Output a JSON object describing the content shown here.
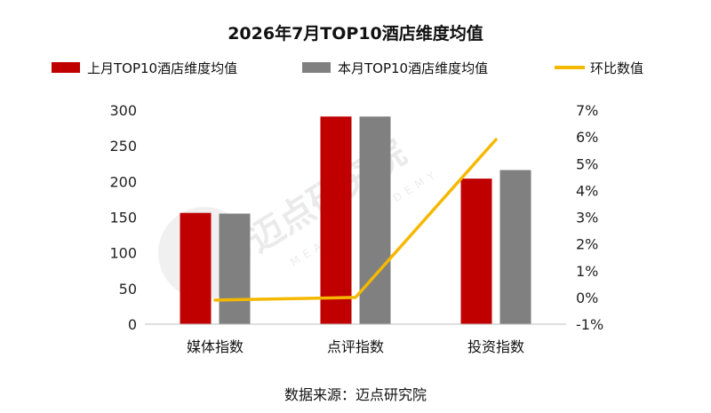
{
  "chart_data": {
    "type": "bar",
    "title": "2026年7月TOP10酒店维度均值",
    "categories": [
      "媒体指数",
      "点评指数",
      "投资指数"
    ],
    "series": [
      {
        "name": "上月TOP10酒店维度均值",
        "kind": "bar",
        "axis": "left",
        "color": "#c00000",
        "values": [
          156,
          291,
          204
        ]
      },
      {
        "name": "本月TOP10酒店维度均值",
        "kind": "bar",
        "axis": "left",
        "color": "#808080",
        "values": [
          155,
          291,
          216
        ]
      },
      {
        "name": "环比数值",
        "kind": "line",
        "axis": "right",
        "color": "#f5b800",
        "values": [
          -0.1,
          0.0,
          5.9
        ]
      }
    ],
    "ylim_left": [
      0,
      300
    ],
    "yticks_left": [
      "0",
      "50",
      "100",
      "150",
      "200",
      "250",
      "300"
    ],
    "ylim_right": [
      -1,
      7
    ],
    "yticks_right": [
      "-1%",
      "0%",
      "1%",
      "2%",
      "3%",
      "4%",
      "5%",
      "6%",
      "7%"
    ],
    "legend_position": "top",
    "grid": false
  },
  "watermark": {
    "text": "迈点研究院",
    "subtext": "MEADIN ACADEMY"
  },
  "source": "数据来源：迈点研究院"
}
